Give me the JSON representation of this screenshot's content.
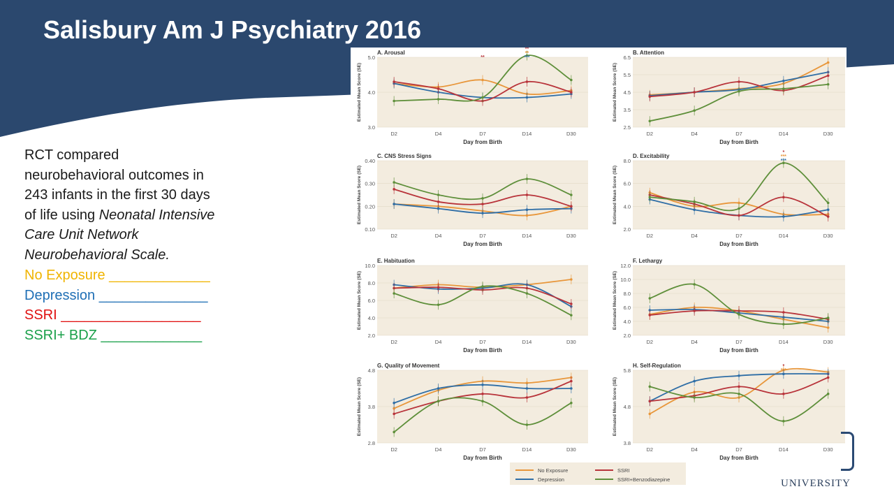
{
  "slide": {
    "title": "Salisbury Am J Psychiatry 2016",
    "description_lines": [
      {
        "text": "RCT compared",
        "italic": false
      },
      {
        "text": "neurobehavioral outcomes in",
        "italic": false
      },
      {
        "text": "243 infants in the first 30 days",
        "italic": false
      },
      {
        "text": "of life using ",
        "italic": false,
        "cont": "Neonatal Intensive"
      },
      {
        "text": "Care Unit Network",
        "italic": true
      },
      {
        "text": "Neurobehavioral Scale.",
        "italic": true
      }
    ],
    "legend_lines": [
      {
        "text": "No Exposure _____________",
        "color": "#f0b400"
      },
      {
        "text": "Depression ______________",
        "color": "#1f6fb5"
      },
      {
        "text": "SSRI __________________",
        "color": "#e01010"
      },
      {
        "text": "SSRI+ BDZ _____________",
        "color": "#1aa04a"
      }
    ],
    "logo_text": "UNIVERSITY"
  },
  "chart_data": {
    "type": "line",
    "x_label": "Day from Birth",
    "y_label": "Estimated Mean Score (SE)",
    "categories": [
      "D2",
      "D4",
      "D7",
      "D14",
      "D30"
    ],
    "series_colors": {
      "No Exposure": "#e8963a",
      "Depression": "#2f6ea6",
      "SSRI": "#b8333a",
      "SSRI+Benzodiazepine": "#5e8f3a"
    },
    "legend": [
      "No Exposure",
      "SSRI",
      "Depression",
      "SSRI+Benzodiazepine"
    ],
    "panels": [
      {
        "title": "A. Arousal",
        "ylim": [
          3.0,
          5.0
        ],
        "yticks": [
          "3.0",
          "4.0",
          "5.0"
        ],
        "series": [
          {
            "name": "No Exposure",
            "values": [
              4.25,
              4.15,
              4.35,
              3.95,
              4.05
            ]
          },
          {
            "name": "Depression",
            "values": [
              4.25,
              4.0,
              3.85,
              3.85,
              3.95
            ]
          },
          {
            "name": "SSRI",
            "values": [
              4.3,
              4.1,
              3.75,
              4.3,
              4.0
            ]
          },
          {
            "name": "SSRI+Benzodiazepine",
            "values": [
              3.75,
              3.8,
              3.85,
              5.05,
              4.35
            ]
          }
        ],
        "annotations": [
          {
            "index": 2,
            "marks": [
              "**"
            ]
          },
          {
            "index": 3,
            "marks": [
              "**",
              "**",
              "***"
            ]
          }
        ]
      },
      {
        "title": "B. Attention",
        "ylim": [
          2.5,
          6.5
        ],
        "yticks": [
          "2.5",
          "3.5",
          "4.5",
          "5.5",
          "6.5"
        ],
        "series": [
          {
            "name": "No Exposure",
            "values": [
              4.35,
              4.5,
              4.7,
              5.0,
              6.2
            ]
          },
          {
            "name": "Depression",
            "values": [
              4.3,
              4.5,
              4.65,
              5.15,
              5.65
            ]
          },
          {
            "name": "SSRI",
            "values": [
              4.25,
              4.5,
              5.1,
              4.6,
              5.45
            ]
          },
          {
            "name": "SSRI+Benzodiazepine",
            "values": [
              2.85,
              3.45,
              4.55,
              4.7,
              4.95
            ]
          }
        ],
        "annotations": []
      },
      {
        "title": "C. CNS Stress Signs",
        "ylim": [
          0.1,
          0.4
        ],
        "yticks": [
          "0.10",
          "0.20",
          "0.30",
          "0.40"
        ],
        "series": [
          {
            "name": "No Exposure",
            "values": [
              0.21,
              0.2,
              0.18,
              0.16,
              0.2
            ]
          },
          {
            "name": "Depression",
            "values": [
              0.21,
              0.19,
              0.17,
              0.185,
              0.19
            ]
          },
          {
            "name": "SSRI",
            "values": [
              0.275,
              0.22,
              0.21,
              0.25,
              0.2
            ]
          },
          {
            "name": "SSRI+Benzodiazepine",
            "values": [
              0.305,
              0.25,
              0.235,
              0.32,
              0.25
            ]
          }
        ],
        "annotations": []
      },
      {
        "title": "D. Excitability",
        "ylim": [
          2.0,
          8.0
        ],
        "yticks": [
          "2.0",
          "4.0",
          "6.0",
          "8.0"
        ],
        "series": [
          {
            "name": "No Exposure",
            "values": [
              5.2,
              4.0,
              4.3,
              3.3,
              3.3
            ]
          },
          {
            "name": "Depression",
            "values": [
              4.6,
              3.7,
              3.2,
              3.1,
              3.7
            ]
          },
          {
            "name": "SSRI",
            "values": [
              5.0,
              4.2,
              3.2,
              4.8,
              3.1
            ]
          },
          {
            "name": "SSRI+Benzodiazepine",
            "values": [
              4.8,
              4.4,
              3.8,
              7.8,
              4.3
            ]
          }
        ],
        "annotations": [
          {
            "index": 3,
            "marks": [
              "*",
              "***",
              "***"
            ]
          }
        ]
      },
      {
        "title": "E. Habituation",
        "ylim": [
          2.0,
          10.0
        ],
        "yticks": [
          "2.0",
          "4.0",
          "6.0",
          "8.0",
          "10.0"
        ],
        "series": [
          {
            "name": "No Exposure",
            "values": [
              7.4,
              7.8,
              7.5,
              7.8,
              8.4
            ]
          },
          {
            "name": "Depression",
            "values": [
              7.8,
              7.3,
              7.4,
              7.8,
              5.3
            ]
          },
          {
            "name": "SSRI",
            "values": [
              7.4,
              7.5,
              7.2,
              7.4,
              5.6
            ]
          },
          {
            "name": "SSRI+Benzodiazepine",
            "values": [
              6.8,
              5.5,
              7.6,
              6.8,
              4.3
            ]
          }
        ],
        "annotations": []
      },
      {
        "title": "F. Lethargy",
        "ylim": [
          2.0,
          12.0
        ],
        "yticks": [
          "2.0",
          "4.0",
          "6.0",
          "8.0",
          "10.0",
          "12.0"
        ],
        "series": [
          {
            "name": "No Exposure",
            "values": [
              5.0,
              6.0,
              5.5,
              4.3,
              3.1
            ]
          },
          {
            "name": "Depression",
            "values": [
              5.6,
              5.7,
              5.2,
              4.6,
              4.0
            ]
          },
          {
            "name": "SSRI",
            "values": [
              4.9,
              5.5,
              5.5,
              5.3,
              4.3
            ]
          },
          {
            "name": "SSRI+Benzodiazepine",
            "values": [
              7.3,
              9.3,
              5.0,
              3.6,
              4.5
            ]
          }
        ],
        "annotations": []
      },
      {
        "title": "G. Quality of Movement",
        "ylim": [
          2.8,
          4.8
        ],
        "yticks": [
          "2.8",
          "3.8",
          "4.8"
        ],
        "series": [
          {
            "name": "No Exposure",
            "values": [
              3.75,
              4.25,
              4.5,
              4.45,
              4.6
            ]
          },
          {
            "name": "Depression",
            "values": [
              3.9,
              4.3,
              4.4,
              4.3,
              4.3
            ]
          },
          {
            "name": "SSRI",
            "values": [
              3.6,
              3.95,
              4.15,
              4.05,
              4.5
            ]
          },
          {
            "name": "SSRI+Benzodiazepine",
            "values": [
              3.1,
              3.95,
              3.95,
              3.3,
              3.9
            ]
          }
        ],
        "annotations": []
      },
      {
        "title": "H. Self-Regulation",
        "ylim": [
          3.8,
          5.8
        ],
        "yticks": [
          "3.8",
          "4.8",
          "5.8"
        ],
        "series": [
          {
            "name": "No Exposure",
            "values": [
              4.6,
              5.2,
              5.05,
              5.8,
              5.75
            ]
          },
          {
            "name": "Depression",
            "values": [
              4.95,
              5.5,
              5.65,
              5.7,
              5.7
            ]
          },
          {
            "name": "SSRI",
            "values": [
              4.95,
              5.1,
              5.35,
              5.15,
              5.6
            ]
          },
          {
            "name": "SSRI+Benzodiazepine",
            "values": [
              5.35,
              5.05,
              5.15,
              4.4,
              5.15
            ]
          }
        ],
        "annotations": [
          {
            "index": 3,
            "marks": [
              "*",
              "***"
            ]
          }
        ]
      }
    ]
  }
}
